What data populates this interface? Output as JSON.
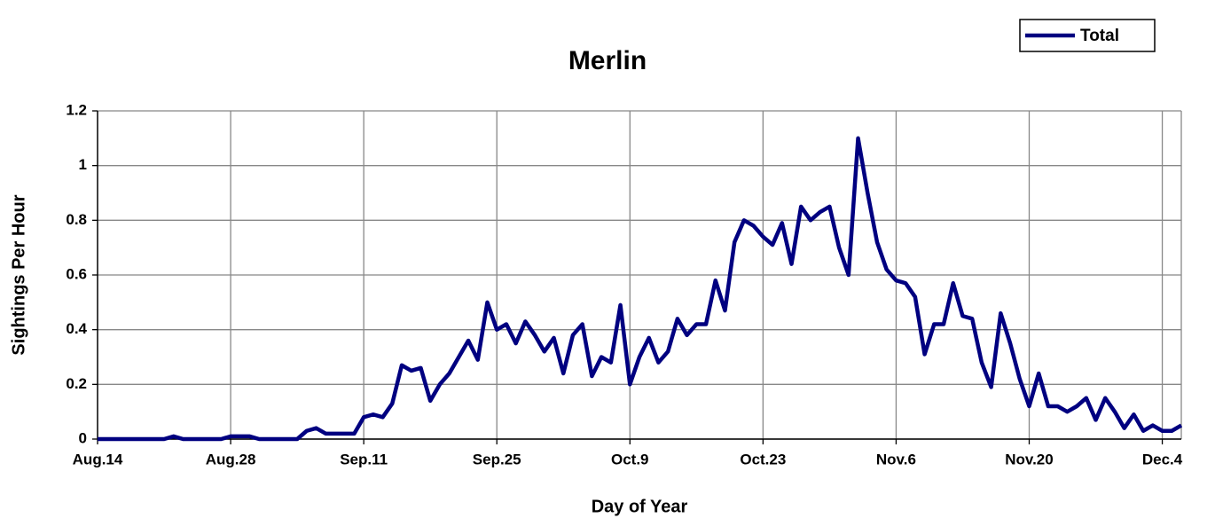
{
  "chart_data": {
    "type": "line",
    "title": "Merlin",
    "x_label": "Day of Year",
    "y_label": "Sightings Per Hour",
    "categories": [
      "Aug.14",
      null,
      null,
      null,
      null,
      null,
      null,
      null,
      null,
      null,
      null,
      null,
      null,
      null,
      "Aug.28",
      null,
      null,
      null,
      null,
      null,
      null,
      null,
      null,
      null,
      null,
      null,
      null,
      null,
      "Sep.11",
      null,
      null,
      null,
      null,
      null,
      null,
      null,
      null,
      null,
      null,
      null,
      null,
      null,
      "Sep.25",
      null,
      null,
      null,
      null,
      null,
      null,
      null,
      null,
      null,
      null,
      null,
      null,
      null,
      "Oct.9",
      null,
      null,
      null,
      null,
      null,
      null,
      null,
      null,
      null,
      null,
      null,
      null,
      null,
      "Oct.23",
      null,
      null,
      null,
      null,
      null,
      null,
      null,
      null,
      null,
      null,
      null,
      null,
      null,
      "Nov.6",
      null,
      null,
      null,
      null,
      null,
      null,
      null,
      null,
      null,
      null,
      null,
      null,
      null,
      "Nov.20",
      null,
      null,
      null,
      null,
      null,
      null,
      null,
      null,
      null,
      null,
      null,
      null,
      null,
      "Dec.4",
      null,
      null
    ],
    "series": [
      {
        "name": "Total",
        "color": "#000080",
        "values": [
          0,
          0,
          0,
          0,
          0,
          0,
          0,
          0,
          0.01,
          0,
          0,
          0,
          0,
          0,
          0.01,
          0.01,
          0.01,
          0,
          0,
          0,
          0,
          0,
          0.03,
          0.04,
          0.02,
          0.02,
          0.02,
          0.02,
          0.08,
          0.09,
          0.08,
          0.13,
          0.27,
          0.25,
          0.26,
          0.14,
          0.2,
          0.24,
          0.3,
          0.36,
          0.29,
          0.5,
          0.4,
          0.42,
          0.35,
          0.43,
          0.38,
          0.32,
          0.37,
          0.24,
          0.38,
          0.42,
          0.23,
          0.3,
          0.28,
          0.49,
          0.2,
          0.3,
          0.37,
          0.28,
          0.32,
          0.44,
          0.38,
          0.42,
          0.42,
          0.58,
          0.47,
          0.72,
          0.8,
          0.78,
          0.74,
          0.71,
          0.79,
          0.64,
          0.85,
          0.8,
          0.83,
          0.85,
          0.7,
          0.6,
          1.1,
          0.9,
          0.72,
          0.62,
          0.58,
          0.57,
          0.52,
          0.31,
          0.42,
          0.42,
          0.57,
          0.45,
          0.44,
          0.28,
          0.19,
          0.46,
          0.35,
          0.22,
          0.12,
          0.24,
          0.12,
          0.12,
          0.1,
          0.12,
          0.15,
          0.07,
          0.15,
          0.1,
          0.04,
          0.09,
          0.03,
          0.05,
          0.03,
          0.03,
          0.05
        ]
      }
    ],
    "ylim": [
      0,
      1.2
    ],
    "yticks": [
      0,
      0.2,
      0.4,
      0.6,
      0.8,
      1,
      1.2
    ],
    "grid": true,
    "legend": "top-right"
  }
}
